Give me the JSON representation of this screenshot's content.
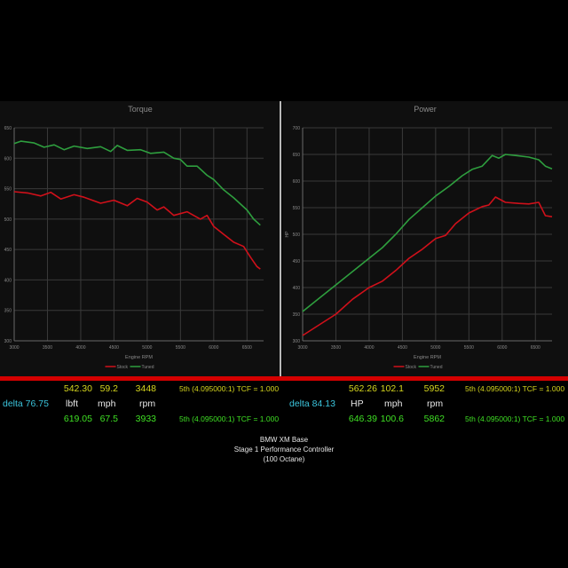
{
  "charts": {
    "torque": {
      "title": "Torque",
      "xlabel": "Engine RPM",
      "ylabel": "lbft"
    },
    "power": {
      "title": "Power",
      "xlabel": "Engine RPM",
      "ylabel": "HP"
    }
  },
  "legend": {
    "stock": "Stock",
    "tuned": "Tuned"
  },
  "colors": {
    "stock": "#d0101a",
    "tuned": "#2e9e3e",
    "grid": "#3a3a3a",
    "axis": "#8a8a8a",
    "accent_bar": "#d40000"
  },
  "chart_data": [
    {
      "type": "line",
      "title": "Torque",
      "xlabel": "Engine RPM",
      "ylabel": "",
      "xlim": [
        3000,
        6750
      ],
      "ylim": [
        300,
        650
      ],
      "xticks": [
        3000,
        3500,
        4000,
        4500,
        5000,
        5500,
        6000,
        6500
      ],
      "yticks": [
        300,
        350,
        400,
        450,
        500,
        550,
        600,
        650
      ],
      "grid": true,
      "legend_position": "bottom",
      "series": [
        {
          "name": "Stock",
          "color": "#d0101a",
          "x": [
            3000,
            3200,
            3400,
            3550,
            3700,
            3900,
            4050,
            4300,
            4500,
            4700,
            4850,
            5000,
            5150,
            5250,
            5400,
            5600,
            5800,
            5900,
            6000,
            6150,
            6300,
            6450,
            6550,
            6650,
            6700
          ],
          "y": [
            545,
            543,
            538,
            544,
            533,
            540,
            536,
            526,
            531,
            522,
            534,
            528,
            515,
            520,
            506,
            512,
            500,
            506,
            488,
            475,
            462,
            455,
            438,
            422,
            418
          ]
        },
        {
          "name": "Tuned",
          "color": "#2e9e3e",
          "x": [
            3000,
            3100,
            3300,
            3450,
            3600,
            3750,
            3900,
            4100,
            4300,
            4450,
            4550,
            4700,
            4900,
            5050,
            5250,
            5400,
            5500,
            5600,
            5750,
            5900,
            6000,
            6150,
            6300,
            6500,
            6600,
            6700
          ],
          "y": [
            624,
            628,
            625,
            618,
            622,
            614,
            620,
            616,
            619,
            611,
            621,
            613,
            614,
            608,
            610,
            600,
            598,
            587,
            587,
            572,
            565,
            548,
            535,
            515,
            500,
            490
          ]
        }
      ]
    },
    {
      "type": "line",
      "title": "Power",
      "xlabel": "Engine RPM",
      "ylabel": "HP",
      "xlim": [
        3000,
        6750
      ],
      "ylim": [
        300,
        700
      ],
      "xticks": [
        3000,
        3500,
        4000,
        4500,
        5000,
        5500,
        6000,
        6500
      ],
      "yticks": [
        300,
        350,
        400,
        450,
        500,
        550,
        600,
        650,
        700
      ],
      "grid": true,
      "legend_position": "bottom",
      "series": [
        {
          "name": "Stock",
          "color": "#d0101a",
          "x": [
            3000,
            3250,
            3500,
            3750,
            4000,
            4200,
            4400,
            4600,
            4800,
            5000,
            5150,
            5300,
            5500,
            5700,
            5800,
            5900,
            6050,
            6250,
            6400,
            6550,
            6650,
            6750
          ],
          "y": [
            310,
            330,
            350,
            378,
            400,
            412,
            432,
            455,
            472,
            492,
            498,
            520,
            540,
            552,
            555,
            570,
            560,
            558,
            557,
            560,
            535,
            533
          ]
        },
        {
          "name": "Tuned",
          "color": "#2e9e3e",
          "x": [
            3000,
            3250,
            3500,
            3750,
            4000,
            4200,
            4400,
            4600,
            4800,
            5000,
            5200,
            5400,
            5550,
            5700,
            5850,
            5950,
            6050,
            6200,
            6400,
            6550,
            6650,
            6750
          ],
          "y": [
            355,
            380,
            405,
            430,
            455,
            475,
            500,
            528,
            550,
            572,
            590,
            610,
            622,
            628,
            648,
            643,
            650,
            648,
            645,
            640,
            628,
            623
          ]
        }
      ]
    }
  ],
  "stats": {
    "torque": {
      "stock": {
        "value": "542.30",
        "mph": "59.2",
        "rpm": "3448",
        "gear": "5th (4.095000:1) TCF = 1.000"
      },
      "delta": "delta 76.75",
      "units": {
        "value": "lbft",
        "mph": "mph",
        "rpm": "rpm"
      },
      "tuned": {
        "value": "619.05",
        "mph": "67.5",
        "rpm": "3933",
        "gear": "5th (4.095000:1) TCF = 1.000"
      }
    },
    "power": {
      "stock": {
        "value": "562.26",
        "mph": "102.1",
        "rpm": "5952",
        "gear": "5th (4.095000:1) TCF = 1.000"
      },
      "delta": "delta 84.13",
      "units": {
        "value": "HP",
        "mph": "mph",
        "rpm": "rpm"
      },
      "tuned": {
        "value": "646.39",
        "mph": "100.6",
        "rpm": "5862",
        "gear": "5th (4.095000:1) TCF = 1.000"
      }
    }
  },
  "footer": {
    "line1": "BMW XM Base",
    "line2": "Stage 1 Performance Controller",
    "line3": "(100 Octane)"
  }
}
